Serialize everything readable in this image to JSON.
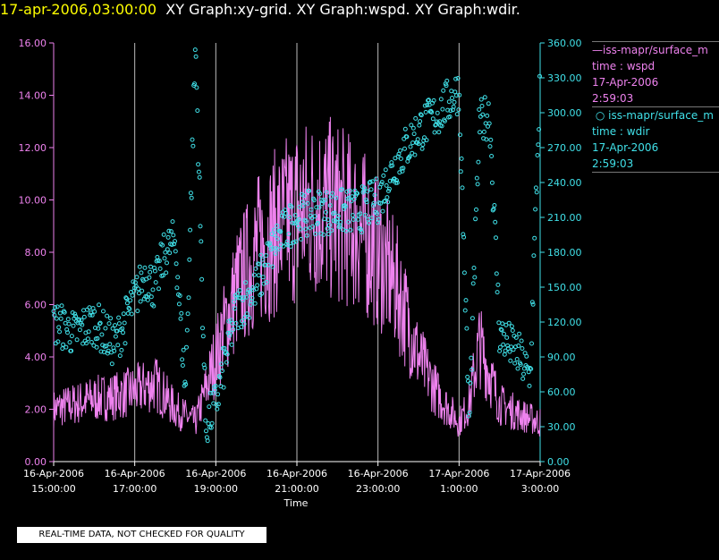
{
  "header": {
    "timestamp": "17-apr-2006,03:00:00",
    "graphs": "XY Graph:xy-grid.  XY Graph:wspd.  XY Graph:wdir."
  },
  "footer": {
    "note": "REAL-TIME DATA, NOT CHECKED FOR QUALITY"
  },
  "chart_data": {
    "type": "line",
    "xlabel": "Time",
    "x_ticks": [
      [
        "16-Apr-2006",
        "15:00:00"
      ],
      [
        "16-Apr-2006",
        "17:00:00"
      ],
      [
        "16-Apr-2006",
        "19:00:00"
      ],
      [
        "16-Apr-2006",
        "21:00:00"
      ],
      [
        "16-Apr-2006",
        "23:00:00"
      ],
      [
        "17-Apr-2006",
        "1:00:00"
      ],
      [
        "17-Apr-2006",
        "3:00:00"
      ]
    ],
    "xlim_hours": [
      15,
      27
    ],
    "y_left": {
      "ylim": [
        0,
        16
      ],
      "ticks": [
        "0.00",
        "2.00",
        "4.00",
        "6.00",
        "8.00",
        "10.00",
        "12.00",
        "14.00",
        "16.00"
      ],
      "color": "#ee82ee"
    },
    "y_right": {
      "ylim": [
        0,
        360
      ],
      "ticks": [
        "0.00",
        "30.00",
        "60.00",
        "90.00",
        "120.00",
        "150.00",
        "180.00",
        "210.00",
        "240.00",
        "270.00",
        "300.00",
        "330.00",
        "360.00"
      ],
      "color": "#40e0e8"
    },
    "grid": "vertical lines at tick times",
    "legend_position": "right",
    "series": [
      {
        "name": "iss-mapr/surface_m",
        "var_label": "time : wspd",
        "date_label": "17-Apr-2006",
        "time_label": "2:59:03",
        "type": "line",
        "axis": "left",
        "color": "#ee82ee",
        "hours": [
          15,
          15.5,
          16,
          16.5,
          17,
          17.5,
          18,
          18.5,
          19,
          19.5,
          20,
          20.5,
          21,
          21.5,
          22,
          22.5,
          23,
          23.5,
          24,
          24.5,
          25,
          25.25,
          25.5,
          26,
          26.5,
          27
        ],
        "values": [
          2.0,
          2.2,
          2.4,
          2.5,
          2.7,
          3.0,
          2.0,
          1.5,
          4.0,
          6.5,
          8.0,
          8.8,
          9.5,
          9.8,
          9.5,
          9.0,
          8.0,
          6.5,
          4.0,
          2.5,
          1.5,
          2.2,
          4.5,
          2.2,
          1.8,
          1.5
        ]
      },
      {
        "name": "iss-mapr/surface_m",
        "var_label": "time : wdir",
        "date_label": "17-Apr-2006",
        "time_label": "2:59:03",
        "type": "scatter",
        "axis": "right",
        "color": "#40e0e8",
        "hours": [
          15,
          15.5,
          16,
          16.5,
          17,
          17.25,
          17.5,
          17.75,
          18,
          18.25,
          18.5,
          18.75,
          19,
          19.5,
          20,
          20.5,
          21,
          21.5,
          22,
          22.5,
          23,
          23.5,
          24,
          24.5,
          25,
          25.25,
          25.5,
          25.75,
          26,
          26.5,
          26.75,
          27
        ],
        "values": [
          120,
          110,
          120,
          100,
          140,
          160,
          150,
          180,
          190,
          60,
          360,
          30,
          50,
          130,
          150,
          190,
          210,
          215,
          215,
          215,
          225,
          260,
          285,
          300,
          320,
          30,
          290,
          300,
          110,
          90,
          70,
          330
        ]
      }
    ]
  }
}
